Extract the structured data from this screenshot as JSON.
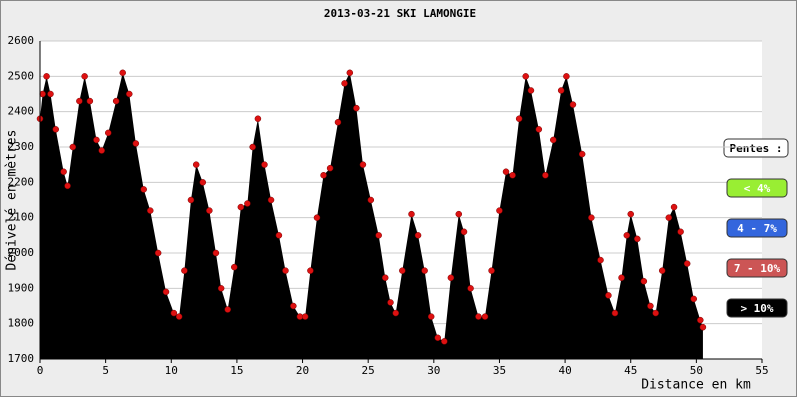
{
  "chart_data": {
    "type": "area",
    "title": "2013-03-21 SKI LAMONGIE",
    "ylabel": "Dénivelé en mètres",
    "xlabel": "Distance en km",
    "legend_title": "Pentes :",
    "legend": [
      {
        "name": "< 4%",
        "color": "#99ee33"
      },
      {
        "name": "4 - 7%",
        "color": "#3366dd"
      },
      {
        "name": "7 - 10%",
        "color": "#cc5555"
      },
      {
        "name": "> 10%",
        "color": "#000000"
      }
    ],
    "series": [
      {
        "color": "#000000",
        "marker_color": "#dd1111",
        "x": [
          0,
          0.2,
          0.5,
          0.8,
          1.2,
          1.8,
          2.1,
          2.5,
          3.0,
          3.4,
          3.8,
          4.3,
          4.7,
          5.2,
          5.8,
          6.3,
          6.8,
          7.3,
          7.9,
          8.4,
          9.0,
          9.6,
          10.2,
          10.6,
          11.0,
          11.5,
          11.9,
          12.4,
          12.9,
          13.4,
          13.8,
          14.3,
          14.8,
          15.3,
          15.8,
          16.2,
          16.6,
          17.1,
          17.6,
          18.2,
          18.7,
          19.3,
          19.8,
          20.2,
          20.6,
          21.1,
          21.6,
          22.1,
          22.7,
          23.2,
          23.6,
          24.1,
          24.6,
          25.2,
          25.8,
          26.3,
          26.7,
          27.1,
          27.6,
          28.3,
          28.8,
          29.3,
          29.8,
          30.3,
          30.8,
          31.3,
          31.9,
          32.3,
          32.8,
          33.4,
          33.9,
          34.4,
          35.0,
          35.5,
          36.0,
          36.5,
          37.0,
          37.4,
          38.0,
          38.5,
          39.1,
          39.7,
          40.1,
          40.6,
          41.3,
          42.0,
          42.7,
          43.3,
          43.8,
          44.3,
          44.7,
          45.0,
          45.5,
          46.0,
          46.5,
          46.9,
          47.4,
          47.9,
          48.3,
          48.8,
          49.3,
          49.8,
          50.3,
          50.5
        ],
        "values": [
          2380,
          2450,
          2500,
          2450,
          2350,
          2230,
          2190,
          2300,
          2430,
          2500,
          2430,
          2320,
          2290,
          2340,
          2430,
          2510,
          2450,
          2310,
          2180,
          2120,
          2000,
          1890,
          1830,
          1820,
          1950,
          2150,
          2250,
          2200,
          2120,
          2000,
          1900,
          1840,
          1960,
          2130,
          2140,
          2300,
          2380,
          2250,
          2150,
          2050,
          1950,
          1850,
          1820,
          1820,
          1950,
          2100,
          2220,
          2240,
          2370,
          2480,
          2510,
          2410,
          2250,
          2150,
          2050,
          1930,
          1860,
          1830,
          1950,
          2110,
          2050,
          1950,
          1820,
          1760,
          1750,
          1930,
          2110,
          2060,
          1900,
          1820,
          1820,
          1950,
          2120,
          2230,
          2220,
          2380,
          2500,
          2460,
          2350,
          2220,
          2320,
          2460,
          2500,
          2420,
          2280,
          2100,
          1980,
          1880,
          1830,
          1930,
          2050,
          2110,
          2040,
          1920,
          1850,
          1830,
          1950,
          2100,
          2130,
          2060,
          1970,
          1870,
          1810,
          1790
        ]
      }
    ],
    "xlim": [
      0,
      55
    ],
    "xticks": [
      0,
      5,
      10,
      15,
      20,
      25,
      30,
      35,
      40,
      45,
      50,
      55
    ],
    "ylim": [
      1700,
      2600
    ],
    "yticks": [
      1700,
      1800,
      1900,
      2000,
      2100,
      2200,
      2300,
      2400,
      2500,
      2600
    ],
    "grid": true
  }
}
